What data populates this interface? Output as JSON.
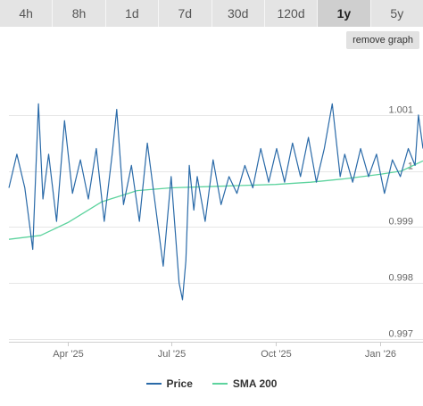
{
  "tabs": [
    {
      "label": "4h",
      "active": false
    },
    {
      "label": "8h",
      "active": false
    },
    {
      "label": "1d",
      "active": false
    },
    {
      "label": "7d",
      "active": false
    },
    {
      "label": "30d",
      "active": false
    },
    {
      "label": "120d",
      "active": false
    },
    {
      "label": "1y",
      "active": true
    },
    {
      "label": "5y",
      "active": false
    }
  ],
  "remove_graph_label": "remove graph",
  "colors": {
    "price": "#2a6aa8",
    "sma": "#5dd39e",
    "grid": "#e6e6e6"
  },
  "chart_data": {
    "type": "line",
    "x_start": "2025-02-08",
    "x_end": "2026-02-08",
    "xticks": [
      {
        "date": "2025-04-01",
        "label": "Apr '25"
      },
      {
        "date": "2025-07-01",
        "label": "Jul '25"
      },
      {
        "date": "2025-10-01",
        "label": "Oct '25"
      },
      {
        "date": "2026-01-01",
        "label": "Jan '26"
      }
    ],
    "yticks": [
      {
        "value": 0.997,
        "label": "0.997"
      },
      {
        "value": 0.998,
        "label": "0.998"
      },
      {
        "value": 0.999,
        "label": "0.999"
      },
      {
        "value": 1.0,
        "label": "1"
      },
      {
        "value": 1.001,
        "label": "1.001"
      }
    ],
    "ylim": [
      0.99695,
      1.00205
    ],
    "grid": true,
    "legend_position": "bottom",
    "series": [
      {
        "name": "Price",
        "x": [
          "2025-02-08",
          "2025-02-15",
          "2025-02-22",
          "2025-03-01",
          "2025-03-06",
          "2025-03-10",
          "2025-03-15",
          "2025-03-22",
          "2025-03-29",
          "2025-04-05",
          "2025-04-12",
          "2025-04-19",
          "2025-04-26",
          "2025-05-03",
          "2025-05-10",
          "2025-05-14",
          "2025-05-20",
          "2025-05-27",
          "2025-06-03",
          "2025-06-10",
          "2025-06-17",
          "2025-06-24",
          "2025-07-01",
          "2025-07-08",
          "2025-07-11",
          "2025-07-14",
          "2025-07-17",
          "2025-07-21",
          "2025-07-24",
          "2025-07-31",
          "2025-08-07",
          "2025-08-14",
          "2025-08-21",
          "2025-08-28",
          "2025-09-04",
          "2025-09-11",
          "2025-09-18",
          "2025-09-25",
          "2025-10-02",
          "2025-10-09",
          "2025-10-16",
          "2025-10-23",
          "2025-10-30",
          "2025-11-06",
          "2025-11-13",
          "2025-11-20",
          "2025-11-27",
          "2025-12-01",
          "2025-12-08",
          "2025-12-15",
          "2025-12-22",
          "2025-12-29",
          "2026-01-05",
          "2026-01-12",
          "2026-01-19",
          "2026-01-26",
          "2026-02-01",
          "2026-02-04",
          "2026-02-08"
        ],
        "y": [
          0.9997,
          1.0003,
          0.9997,
          0.9986,
          1.0012,
          0.9995,
          1.0003,
          0.9991,
          1.0009,
          0.9996,
          1.0002,
          0.9995,
          1.0004,
          0.9991,
          1.0003,
          1.0011,
          0.9994,
          1.0001,
          0.9991,
          1.0005,
          0.9994,
          0.9983,
          0.9999,
          0.998,
          0.9977,
          0.9984,
          1.0001,
          0.9993,
          0.9999,
          0.9991,
          1.0002,
          0.9994,
          0.9999,
          0.9996,
          1.0001,
          0.9997,
          1.0004,
          0.9998,
          1.0004,
          0.9998,
          1.0005,
          0.9999,
          1.0006,
          0.9998,
          1.0004,
          1.0012,
          0.9999,
          1.0003,
          0.9998,
          1.0004,
          0.9999,
          1.0003,
          0.9996,
          1.0002,
          0.9999,
          1.0004,
          1.0001,
          1.001,
          1.0004
        ]
      },
      {
        "name": "SMA 200",
        "x": [
          "2025-02-08",
          "2025-03-08",
          "2025-04-01",
          "2025-05-01",
          "2025-06-01",
          "2025-07-01",
          "2025-08-01",
          "2025-09-01",
          "2025-10-01",
          "2025-11-01",
          "2025-12-01",
          "2026-01-01",
          "2026-01-20",
          "2026-02-08"
        ],
        "y": [
          0.99878,
          0.99885,
          0.99908,
          0.99945,
          0.99965,
          0.9997,
          0.99972,
          0.99974,
          0.99976,
          0.9998,
          0.99986,
          0.99994,
          1.0,
          1.00018
        ]
      }
    ]
  }
}
